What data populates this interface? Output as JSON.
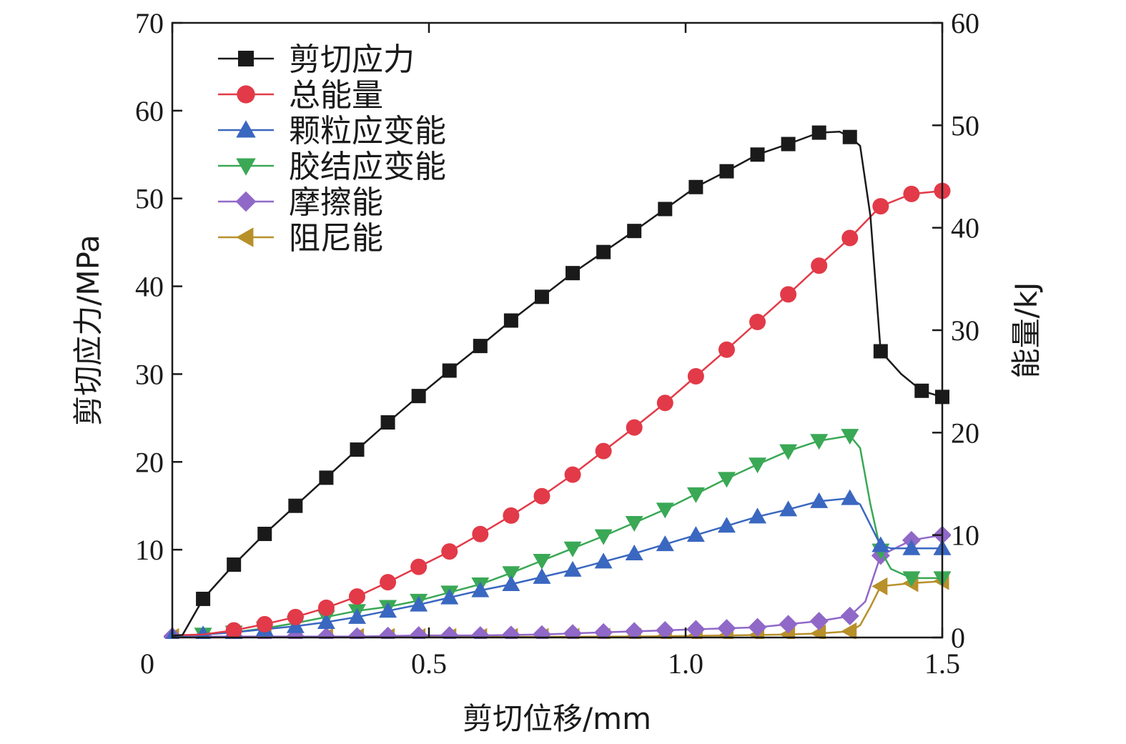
{
  "chart_data": {
    "type": "line",
    "xlabel": "剪切位移/mm",
    "ylabel_left": "剪切应力/MPa",
    "ylabel_right": "能量/kJ",
    "xlim": [
      0,
      1.5
    ],
    "ylim_left": [
      0,
      70
    ],
    "ylim_right": [
      0,
      60
    ],
    "x_ticks": [
      "0",
      "0.5",
      "1.0",
      "1.5"
    ],
    "y_left_ticks": [
      "10",
      "20",
      "30",
      "40",
      "50",
      "60",
      "70"
    ],
    "y_right_ticks": [
      "0",
      "10",
      "20",
      "30",
      "40",
      "50",
      "60"
    ],
    "grid": false,
    "legend_position": "top-left",
    "series": [
      {
        "name": "剪切应力",
        "axis": "left",
        "color": "#1a1a1a",
        "marker": "square",
        "points": [
          [
            0,
            0.2
          ],
          [
            0.02,
            0.3
          ],
          [
            0.06,
            4.4
          ],
          [
            0.12,
            8.3
          ],
          [
            0.18,
            11.8
          ],
          [
            0.24,
            15.0
          ],
          [
            0.3,
            18.2
          ],
          [
            0.36,
            21.4
          ],
          [
            0.42,
            24.5
          ],
          [
            0.48,
            27.5
          ],
          [
            0.54,
            30.4
          ],
          [
            0.6,
            33.2
          ],
          [
            0.66,
            36.1
          ],
          [
            0.72,
            38.8
          ],
          [
            0.78,
            41.5
          ],
          [
            0.84,
            43.9
          ],
          [
            0.9,
            46.3
          ],
          [
            0.96,
            48.8
          ],
          [
            1.02,
            51.3
          ],
          [
            1.08,
            53.1
          ],
          [
            1.14,
            55.0
          ],
          [
            1.2,
            56.2
          ],
          [
            1.26,
            57.5
          ],
          [
            1.3,
            57.6
          ],
          [
            1.32,
            57.0
          ],
          [
            1.34,
            56.0
          ],
          [
            1.36,
            48.0
          ],
          [
            1.38,
            32.6
          ],
          [
            1.42,
            30.0
          ],
          [
            1.46,
            28.1
          ],
          [
            1.5,
            27.4
          ]
        ],
        "marker_x": [
          0.06,
          0.12,
          0.18,
          0.24,
          0.3,
          0.36,
          0.42,
          0.48,
          0.54,
          0.6,
          0.66,
          0.72,
          0.78,
          0.84,
          0.9,
          0.96,
          1.02,
          1.08,
          1.14,
          1.2,
          1.26,
          1.32,
          1.38,
          1.46,
          1.5
        ]
      },
      {
        "name": "总能量",
        "axis": "right",
        "color": "#e23a48",
        "marker": "circle",
        "points": [
          [
            0,
            0.2
          ],
          [
            0.06,
            0.3
          ],
          [
            0.12,
            0.7
          ],
          [
            0.18,
            1.3
          ],
          [
            0.24,
            2.0
          ],
          [
            0.3,
            2.9
          ],
          [
            0.36,
            4.0
          ],
          [
            0.42,
            5.4
          ],
          [
            0.48,
            6.9
          ],
          [
            0.54,
            8.4
          ],
          [
            0.6,
            10.1
          ],
          [
            0.66,
            11.9
          ],
          [
            0.72,
            13.8
          ],
          [
            0.78,
            15.9
          ],
          [
            0.84,
            18.2
          ],
          [
            0.9,
            20.5
          ],
          [
            0.96,
            22.9
          ],
          [
            1.02,
            25.5
          ],
          [
            1.08,
            28.1
          ],
          [
            1.14,
            30.8
          ],
          [
            1.2,
            33.5
          ],
          [
            1.26,
            36.3
          ],
          [
            1.32,
            39.0
          ],
          [
            1.38,
            42.1
          ],
          [
            1.44,
            43.3
          ],
          [
            1.5,
            43.6
          ]
        ],
        "marker_x": [
          0.12,
          0.18,
          0.24,
          0.3,
          0.36,
          0.42,
          0.48,
          0.54,
          0.6,
          0.66,
          0.72,
          0.78,
          0.84,
          0.9,
          0.96,
          1.02,
          1.08,
          1.14,
          1.2,
          1.26,
          1.32,
          1.38,
          1.44,
          1.5
        ]
      },
      {
        "name": "颗粒应变能",
        "axis": "right",
        "color": "#3a67c0",
        "marker": "triangle-up",
        "points": [
          [
            0,
            0.1
          ],
          [
            0.06,
            0.3
          ],
          [
            0.12,
            0.5
          ],
          [
            0.18,
            0.8
          ],
          [
            0.24,
            1.1
          ],
          [
            0.3,
            1.5
          ],
          [
            0.36,
            2.0
          ],
          [
            0.42,
            2.6
          ],
          [
            0.48,
            3.2
          ],
          [
            0.54,
            3.9
          ],
          [
            0.6,
            4.6
          ],
          [
            0.66,
            5.2
          ],
          [
            0.72,
            5.9
          ],
          [
            0.78,
            6.6
          ],
          [
            0.84,
            7.4
          ],
          [
            0.9,
            8.2
          ],
          [
            0.96,
            9.1
          ],
          [
            1.02,
            10.0
          ],
          [
            1.08,
            10.9
          ],
          [
            1.14,
            11.8
          ],
          [
            1.2,
            12.5
          ],
          [
            1.26,
            13.3
          ],
          [
            1.32,
            13.6
          ],
          [
            1.34,
            13.0
          ],
          [
            1.38,
            9.0
          ],
          [
            1.4,
            8.7
          ],
          [
            1.44,
            8.7
          ],
          [
            1.5,
            8.7
          ]
        ],
        "marker_x": [
          0,
          0.06,
          0.12,
          0.18,
          0.24,
          0.3,
          0.36,
          0.42,
          0.48,
          0.54,
          0.6,
          0.66,
          0.72,
          0.78,
          0.84,
          0.9,
          0.96,
          1.02,
          1.08,
          1.14,
          1.2,
          1.26,
          1.32,
          1.38,
          1.44,
          1.5
        ]
      },
      {
        "name": "胶结应变能",
        "axis": "right",
        "color": "#3aa855",
        "marker": "triangle-down",
        "points": [
          [
            0,
            0.1
          ],
          [
            0.06,
            0.3
          ],
          [
            0.12,
            0.5
          ],
          [
            0.18,
            0.9
          ],
          [
            0.24,
            1.4
          ],
          [
            0.3,
            2.0
          ],
          [
            0.36,
            2.6
          ],
          [
            0.42,
            3.0
          ],
          [
            0.48,
            3.6
          ],
          [
            0.54,
            4.4
          ],
          [
            0.6,
            5.2
          ],
          [
            0.66,
            6.3
          ],
          [
            0.72,
            7.5
          ],
          [
            0.78,
            8.7
          ],
          [
            0.84,
            9.9
          ],
          [
            0.9,
            11.2
          ],
          [
            0.96,
            12.5
          ],
          [
            1.02,
            14.0
          ],
          [
            1.08,
            15.5
          ],
          [
            1.14,
            16.9
          ],
          [
            1.2,
            18.2
          ],
          [
            1.26,
            19.2
          ],
          [
            1.32,
            19.7
          ],
          [
            1.34,
            18.5
          ],
          [
            1.36,
            13.0
          ],
          [
            1.38,
            8.5
          ],
          [
            1.4,
            6.7
          ],
          [
            1.44,
            5.8
          ],
          [
            1.5,
            5.8
          ]
        ],
        "marker_x": [
          0.06,
          0.12,
          0.18,
          0.24,
          0.3,
          0.36,
          0.42,
          0.48,
          0.54,
          0.6,
          0.66,
          0.72,
          0.78,
          0.84,
          0.9,
          0.96,
          1.02,
          1.08,
          1.14,
          1.2,
          1.26,
          1.32,
          1.38,
          1.44,
          1.5
        ]
      },
      {
        "name": "摩擦能",
        "axis": "right",
        "color": "#9068c8",
        "marker": "diamond",
        "points": [
          [
            0,
            0.1
          ],
          [
            0.12,
            0.1
          ],
          [
            0.24,
            0.1
          ],
          [
            0.36,
            0.1
          ],
          [
            0.48,
            0.2
          ],
          [
            0.6,
            0.2
          ],
          [
            0.72,
            0.3
          ],
          [
            0.84,
            0.5
          ],
          [
            0.96,
            0.7
          ],
          [
            1.02,
            0.8
          ],
          [
            1.08,
            0.9
          ],
          [
            1.14,
            1.0
          ],
          [
            1.2,
            1.3
          ],
          [
            1.26,
            1.6
          ],
          [
            1.32,
            2.1
          ],
          [
            1.35,
            3.5
          ],
          [
            1.38,
            8.0
          ],
          [
            1.44,
            9.5
          ],
          [
            1.5,
            10.0
          ]
        ],
        "marker_x": [
          0,
          0.06,
          0.12,
          0.18,
          0.24,
          0.3,
          0.36,
          0.42,
          0.48,
          0.54,
          0.6,
          0.66,
          0.72,
          0.78,
          0.84,
          0.9,
          0.96,
          1.02,
          1.08,
          1.14,
          1.2,
          1.26,
          1.32,
          1.38,
          1.44,
          1.5
        ]
      },
      {
        "name": "阻尼能",
        "axis": "right",
        "color": "#b8902a",
        "marker": "triangle-left",
        "points": [
          [
            0,
            0.05
          ],
          [
            0.3,
            0.05
          ],
          [
            0.6,
            0.05
          ],
          [
            0.9,
            0.1
          ],
          [
            1.08,
            0.2
          ],
          [
            1.2,
            0.3
          ],
          [
            1.26,
            0.4
          ],
          [
            1.32,
            0.6
          ],
          [
            1.34,
            1.2
          ],
          [
            1.36,
            3.0
          ],
          [
            1.38,
            5.0
          ],
          [
            1.44,
            5.3
          ],
          [
            1.5,
            5.5
          ]
        ],
        "marker_x": [
          0,
          0.06,
          0.12,
          0.18,
          0.24,
          0.3,
          0.36,
          0.42,
          0.48,
          0.54,
          0.6,
          0.66,
          0.72,
          0.78,
          0.84,
          0.9,
          0.96,
          1.02,
          1.08,
          1.14,
          1.2,
          1.26,
          1.32,
          1.38,
          1.44,
          1.5
        ]
      }
    ]
  }
}
